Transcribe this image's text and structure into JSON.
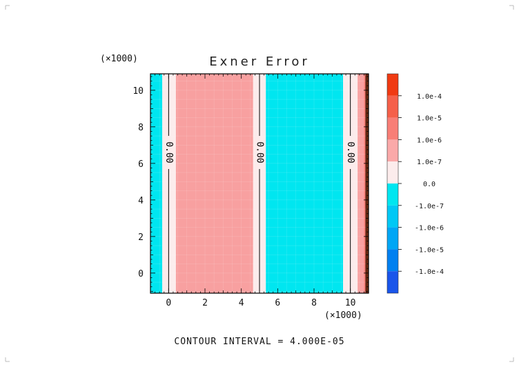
{
  "chart_data": {
    "type": "heatmap",
    "title": "Exner Error",
    "x_multiplier": "(×1000)",
    "y_multiplier": "(×1000)",
    "xlim": [
      -1,
      11
    ],
    "ylim": [
      -1.1,
      10.9
    ],
    "x_ticks": [
      0,
      2,
      4,
      6,
      8,
      10
    ],
    "y_ticks": [
      0,
      2,
      4,
      6,
      8,
      10
    ],
    "x_tick_labels": [
      "0",
      "2",
      "4",
      "6",
      "8",
      "10"
    ],
    "y_tick_labels": [
      "0",
      "2",
      "4",
      "6",
      "8",
      "10"
    ],
    "bands": [
      {
        "x0": -1.0,
        "x1": -0.35,
        "level": -1
      },
      {
        "x0": -0.35,
        "x1": 0.4,
        "level": 0
      },
      {
        "x0": 0.4,
        "x1": 4.65,
        "level": 1
      },
      {
        "x0": 4.65,
        "x1": 5.35,
        "level": 0
      },
      {
        "x0": 5.35,
        "x1": 9.6,
        "level": -1
      },
      {
        "x0": 9.6,
        "x1": 10.4,
        "level": 0
      },
      {
        "x0": 10.4,
        "x1": 10.75,
        "level": 1
      },
      {
        "x0": 10.75,
        "x1": 10.85,
        "level": 2
      },
      {
        "x0": 10.85,
        "x1": 11.0,
        "level": 5
      }
    ],
    "contours": [
      {
        "x": 0.0,
        "label": "0.00"
      },
      {
        "x": 5.0,
        "label": "0.00"
      },
      {
        "x": 10.0,
        "label": "0.00"
      }
    ],
    "colorbar": {
      "levels": [
        {
          "level": 5,
          "color": "#f03a12"
        },
        {
          "level": 4,
          "color": "#f5604a"
        },
        {
          "level": 3,
          "color": "#f87e76"
        },
        {
          "level": 2,
          "color": "#faa9a9"
        },
        {
          "level": 0,
          "color": "#fcecec"
        },
        {
          "level": -1,
          "color": "#00e6f0"
        },
        {
          "level": -2,
          "color": "#00c8f5"
        },
        {
          "level": -3,
          "color": "#00a6f5"
        },
        {
          "level": -4,
          "color": "#0080f0"
        },
        {
          "level": -5,
          "color": "#1a55ea"
        }
      ],
      "labels": [
        "1.0e-4",
        "1.0e-5",
        "1.0e-6",
        "1.0e-7",
        "0.0",
        "-1.0e-7",
        "-1.0e-6",
        "-1.0e-5",
        "-1.0e-4"
      ]
    },
    "band_colors": {
      "-1": "#00e6f0",
      "0": "#fcecec",
      "1": "#f8a0a0",
      "2": "#f87e76",
      "5": "#6e2a12"
    },
    "footer": "CONTOUR INTERVAL = 4.000E-05"
  }
}
